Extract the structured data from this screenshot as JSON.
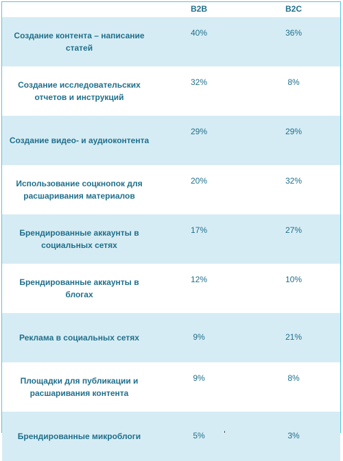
{
  "table": {
    "columns": {
      "b2b": "B2B",
      "b2c": "B2C"
    },
    "rows": [
      {
        "label": "Создание контента – написание статей",
        "b2b": "40%",
        "b2c": "36%"
      },
      {
        "label": "Создание исследовательских отчетов и инструкций",
        "b2b": "32%",
        "b2c": "8%"
      },
      {
        "label": "Создание видео- и аудиоконтента",
        "b2b": "29%",
        "b2c": "29%"
      },
      {
        "label": "Использование соцкнопок для расшаривания материалов",
        "b2b": "20%",
        "b2c": "32%"
      },
      {
        "label": "Брендированные аккаунты в социальных сетях",
        "b2b": "17%",
        "b2c": "27%"
      },
      {
        "label": "Брендированные аккаунты в блогах",
        "b2b": "12%",
        "b2c": "10%"
      },
      {
        "label": "Реклама в социальных сетях",
        "b2b": "9%",
        "b2c": "21%"
      },
      {
        "label": "Площадки для публикации и расшаривания контента",
        "b2b": "9%",
        "b2c": "8%"
      },
      {
        "label": "Брендированные микроблоги",
        "b2b": "5%",
        "b2c": "3%"
      }
    ]
  },
  "colors": {
    "text": "#1f6f8b",
    "row_shade": "#d6ecf4",
    "border": "#58c0dc"
  }
}
